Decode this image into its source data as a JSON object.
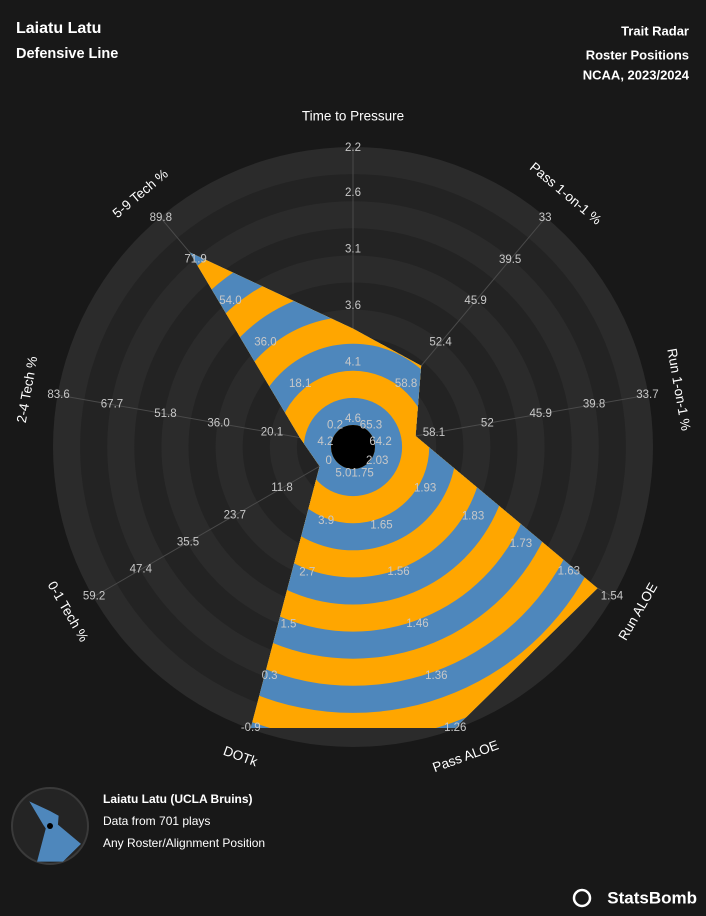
{
  "chart_data": {
    "type": "radar",
    "title": "Laiatu Latu",
    "subtitle": "Defensive Line",
    "header_right": [
      "Trait Radar",
      "Roster Positions",
      "NCAA, 2023/2024"
    ],
    "axes": [
      {
        "name": "Time to Pressure",
        "lim": [
          4.6,
          2.2
        ],
        "ticks": [
          4.6,
          4.1,
          3.6,
          3.1,
          2.6,
          2.2
        ]
      },
      {
        "name": "Pass 1-on-1 %",
        "lim": [
          65.3,
          33
        ],
        "ticks": [
          65.3,
          58.8,
          52.4,
          45.9,
          39.5,
          33
        ]
      },
      {
        "name": "Run 1-on-1 %",
        "lim": [
          64.2,
          33.7
        ],
        "ticks": [
          64.2,
          58.1,
          52,
          45.9,
          39.8,
          33.7
        ]
      },
      {
        "name": "Run ALOE",
        "lim": [
          2.03,
          1.54
        ],
        "ticks": [
          2.03,
          1.93,
          1.83,
          1.73,
          1.63,
          1.54
        ]
      },
      {
        "name": "Pass ALOE",
        "lim": [
          1.75,
          1.26
        ],
        "ticks": [
          1.75,
          1.65,
          1.56,
          1.46,
          1.36,
          1.26
        ]
      },
      {
        "name": "DOTk",
        "lim": [
          5.0,
          -0.9
        ],
        "ticks": [
          {
            "value": 5.0,
            "label": "5.0"
          },
          3.9,
          2.7,
          1.5,
          0.3,
          -0.9
        ]
      },
      {
        "name": "0-1 Tech %",
        "lim": [
          0,
          59.2
        ],
        "ticks": [
          0,
          11.8,
          23.7,
          35.5,
          47.4,
          59.2
        ]
      },
      {
        "name": "2-4 Tech %",
        "lim": [
          4.2,
          83.6
        ],
        "ticks": [
          4.2,
          20.1,
          {
            "value": 36.0,
            "label": "36.0"
          },
          51.8,
          67.7,
          83.6
        ]
      },
      {
        "name": "5-9 Tech %",
        "lim": [
          0.2,
          89.8
        ],
        "ticks": [
          0.2,
          18.1,
          {
            "value": 36.0,
            "label": "36.0"
          },
          {
            "value": 54.0,
            "label": "54.0"
          },
          71.9,
          89.8
        ]
      }
    ],
    "series": [
      {
        "name": "Laiatu Latu (UCLA Bruins)",
        "colors": [
          "#ffa600",
          "#4e87bc"
        ],
        "values": [
          3.8,
          56.0,
          60.2,
          1.57,
          1.26,
          -0.9,
          2.3,
          11.8,
          75.0
        ]
      }
    ],
    "notes": [
      "Data from 701 plays",
      "Any Roster/Alignment Position"
    ],
    "brand": "StatsBomb"
  }
}
